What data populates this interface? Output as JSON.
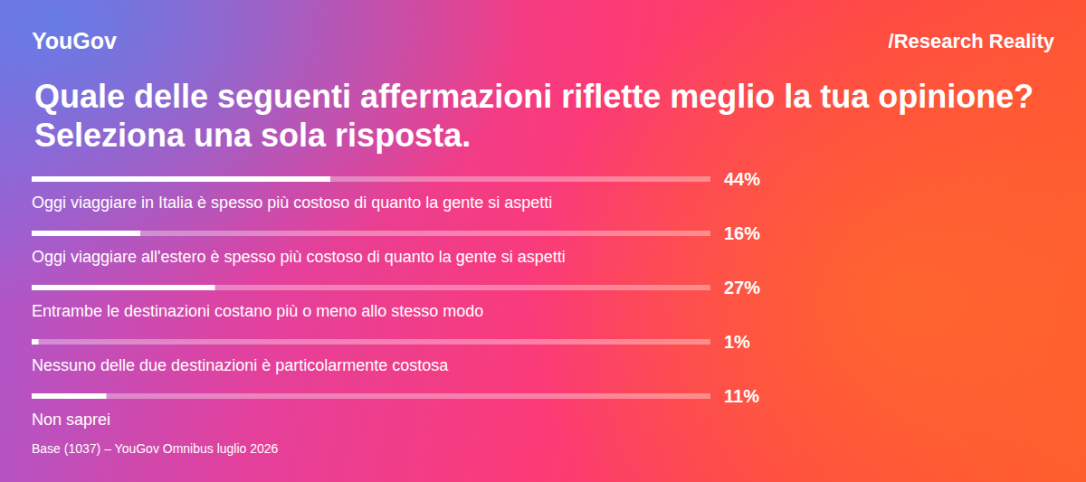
{
  "chart_data": {
    "type": "bar",
    "orientation": "horizontal",
    "title": "Quale delle seguenti affermazioni riflette meglio la tua opinione? Seleziona una sola risposta.",
    "categories": [
      "Oggi viaggiare in Italia è spesso più costoso di quanto la gente si aspetti",
      "Oggi viaggiare all'estero è spesso più costoso di quanto la gente si aspetti",
      "Entrambe le destinazioni costano più o meno allo stesso modo",
      "Nessuno delle due destinazioni è particolarmente costosa",
      "Non saprei"
    ],
    "values": [
      44,
      16,
      27,
      1,
      11
    ],
    "value_labels": [
      "44%",
      "16%",
      "27%",
      "1%",
      "11%"
    ],
    "data_labels": true,
    "color": "#ffffff",
    "xlim": [
      0,
      100
    ],
    "tick_labels": false,
    "grid": false,
    "annotations": [
      "YouGov",
      "/Research Reality",
      "Base (1037) – YouGov Omnibus luglio 2026"
    ]
  }
}
